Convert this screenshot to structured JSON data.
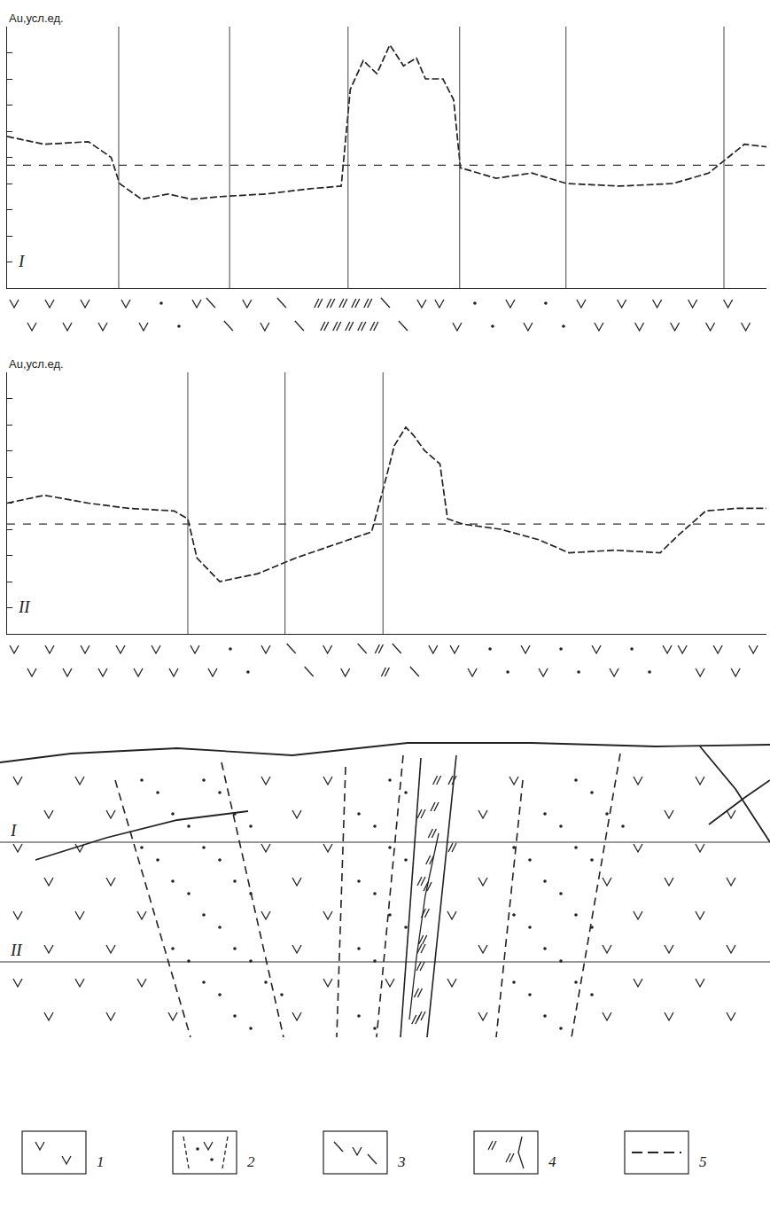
{
  "chart_data": [
    {
      "type": "line",
      "panel": "I",
      "y_label": "Au,усл.ед.",
      "xlim": [
        0,
        100
      ],
      "ylim": [
        0,
        10
      ],
      "yticks": [
        0,
        1,
        2,
        3,
        4,
        5,
        6,
        7,
        8,
        9,
        10
      ],
      "tick_labels": false,
      "grid": false,
      "threshold": 4.7,
      "boundaries": [
        14.7,
        29.3,
        44.9,
        59.6,
        73.6,
        94.4
      ],
      "series": [
        {
          "color": "#222222",
          "line_style": "dashed",
          "x": [
            0,
            4.9,
            10.7,
            13.7,
            14.8,
            17.7,
            21.2,
            24.2,
            28.2,
            34.1,
            39.9,
            44.0,
            45.2,
            46.9,
            48.7,
            50.4,
            52.2,
            53.9,
            55.1,
            57.4,
            58.8,
            59.7,
            64.4,
            69.1,
            73.7,
            80.7,
            87.7,
            92.4,
            97.1,
            100
          ],
          "values": [
            5.8,
            5.5,
            5.6,
            5.0,
            4.0,
            3.4,
            3.6,
            3.4,
            3.5,
            3.6,
            3.8,
            3.9,
            7.6,
            8.7,
            8.2,
            9.3,
            8.5,
            8.8,
            8.0,
            8.0,
            7.2,
            4.6,
            4.2,
            4.4,
            4.0,
            3.9,
            4.0,
            4.4,
            5.5,
            5.4
          ]
        }
      ],
      "lithology": [
        {
          "from": 0,
          "to": 14.7,
          "rock": 1
        },
        {
          "from": 14.7,
          "to": 26,
          "rock": 2
        },
        {
          "from": 26,
          "to": 40,
          "rock": 3
        },
        {
          "from": 40,
          "to": 49,
          "rock": 4
        },
        {
          "from": 49,
          "to": 56,
          "rock": 3
        },
        {
          "from": 56,
          "to": 80,
          "rock": 2
        },
        {
          "from": 80,
          "to": 100,
          "rock": 1
        }
      ]
    },
    {
      "type": "line",
      "panel": "II",
      "y_label": "Au,усл.ед.",
      "xlim": [
        0,
        100
      ],
      "ylim": [
        0,
        10
      ],
      "yticks": [
        0,
        1,
        2,
        3,
        4,
        5,
        6,
        7,
        8,
        9,
        10
      ],
      "tick_labels": false,
      "grid": false,
      "threshold": 4.2,
      "boundaries": [
        23.8,
        36.6,
        49.5
      ],
      "series": [
        {
          "color": "#222222",
          "line_style": "dashed",
          "x": [
            0,
            4.9,
            10.7,
            16,
            22,
            23.8,
            25,
            28,
            33,
            38,
            43,
            48,
            49.5,
            51,
            52.5,
            53.5,
            55,
            57,
            58,
            60,
            65,
            70,
            74,
            80,
            86,
            88.5,
            92,
            96,
            100
          ],
          "values": [
            5.0,
            5.3,
            5.0,
            4.8,
            4.7,
            4.4,
            2.9,
            2.0,
            2.3,
            2.9,
            3.4,
            3.9,
            5.5,
            7.2,
            7.9,
            7.6,
            7.0,
            6.5,
            4.4,
            4.2,
            4.0,
            3.6,
            3.1,
            3.2,
            3.1,
            3.8,
            4.7,
            4.8,
            4.8
          ]
        }
      ],
      "lithology": [
        {
          "from": 0,
          "to": 23.8,
          "rock": 1
        },
        {
          "from": 23.8,
          "to": 36.6,
          "rock": 2
        },
        {
          "from": 36.6,
          "to": 48,
          "rock": 3
        },
        {
          "from": 48,
          "to": 50.5,
          "rock": 4
        },
        {
          "from": 50.5,
          "to": 58,
          "rock": 3
        },
        {
          "from": 58,
          "to": 88,
          "rock": 2
        },
        {
          "from": 88,
          "to": 100,
          "rock": 1
        }
      ]
    }
  ],
  "cross_section": {
    "level_labels": [
      "I",
      "II"
    ]
  },
  "legend_labels": [
    "1",
    "2",
    "3",
    "4",
    "5"
  ]
}
